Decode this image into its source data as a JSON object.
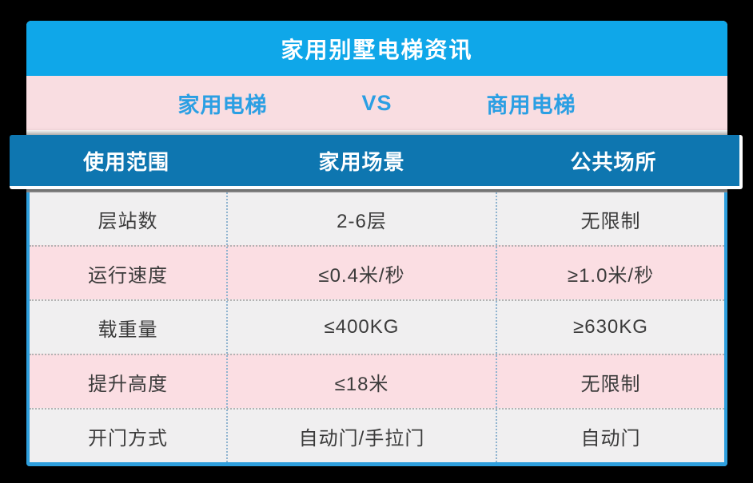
{
  "title": "家用别墅电梯资讯",
  "vs_row": {
    "left": "家用电梯",
    "vs": "VS",
    "right": "商用电梯"
  },
  "table": {
    "columns": [
      "使用范围",
      "家用场景",
      "公共场所"
    ],
    "rows": [
      [
        "层站数",
        "2-6层",
        "无限制"
      ],
      [
        "运行速度",
        "≤0.4米/秒",
        "≥1.0米/秒"
      ],
      [
        "载重量",
        "≤400KG",
        "≥630KG"
      ],
      [
        "提升高度",
        "≤18米",
        "无限制"
      ],
      [
        "开门方式",
        "自动门/手拉门",
        "自动门"
      ]
    ]
  },
  "colors": {
    "background": "#000000",
    "title_band_blue": "#0FA7E9",
    "pink_band": "#F9DDE1",
    "header_bar_blue": "#0E76B0",
    "row_gray": "#F0EFF0",
    "row_pink": "#FBDEE3",
    "accent_text_blue": "#2B9FE3",
    "body_border_blue": "#2E9FDD",
    "cell_text": "#3B3B3B"
  },
  "chart_data": {
    "type": "table",
    "title": "家用别墅电梯资讯",
    "subtitle": "家用电梯 VS 商用电梯",
    "columns": [
      "使用范围",
      "家用场景",
      "公共场所"
    ],
    "rows": [
      [
        "层站数",
        "2-6层",
        "无限制"
      ],
      [
        "运行速度",
        "≤0.4米/秒",
        "≥1.0米/秒"
      ],
      [
        "载重量",
        "≤400KG",
        "≥630KG"
      ],
      [
        "提升高度",
        "≤18米",
        "无限制"
      ],
      [
        "开门方式",
        "自动门/手拉门",
        "自动门"
      ]
    ],
    "layout_hints": {
      "row_striping": [
        "gray",
        "pink",
        "gray",
        "pink",
        "gray"
      ],
      "header_style": "dark-blue bar wider than table with white bottom edge",
      "separators": "dotted gray horizontal, dotted blue vertical"
    }
  }
}
